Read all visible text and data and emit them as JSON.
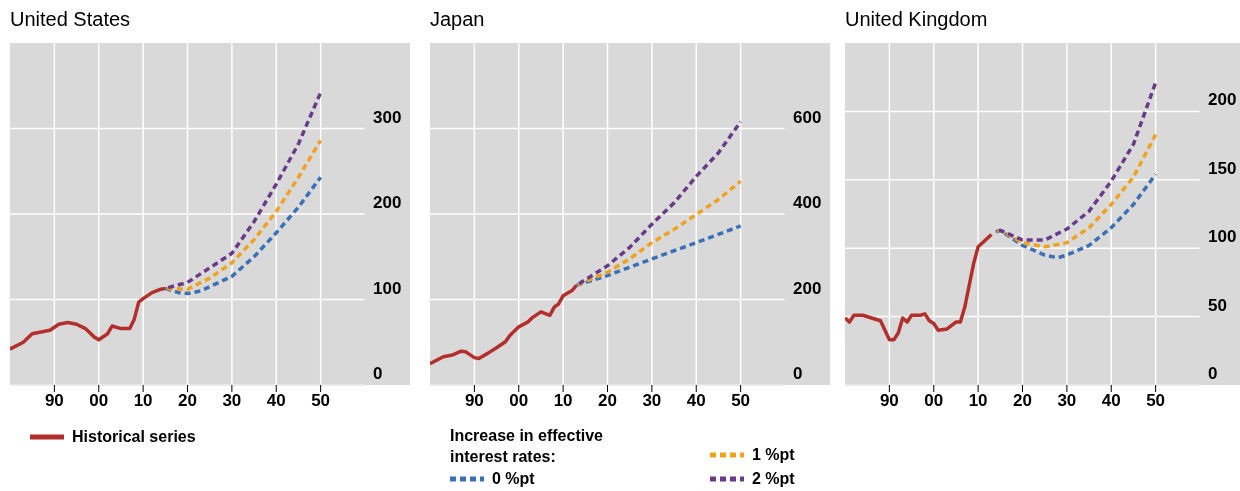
{
  "chart_data": [
    {
      "type": "line",
      "title": "United States",
      "xlim": [
        1980,
        2060
      ],
      "xticks": [
        {
          "value": 1990,
          "label": "90"
        },
        {
          "value": 2000,
          "label": "00"
        },
        {
          "value": 2010,
          "label": "10"
        },
        {
          "value": 2020,
          "label": "20"
        },
        {
          "value": 2030,
          "label": "30"
        },
        {
          "value": 2040,
          "label": "40"
        },
        {
          "value": 2050,
          "label": "50"
        }
      ],
      "ylim": [
        0,
        400
      ],
      "yticks": [
        0,
        100,
        200,
        300
      ],
      "grid": true,
      "legend": "bottom",
      "series": [
        {
          "name": "Historical series",
          "color": "#b22f2c",
          "line_style": "solid",
          "x": [
            1980,
            1983,
            1985,
            1987,
            1989,
            1991,
            1993,
            1995,
            1997,
            1999,
            2000,
            2002,
            2003,
            2005,
            2007,
            2008,
            2009,
            2010,
            2012,
            2014,
            2015
          ],
          "values": [
            42,
            50,
            60,
            62,
            64,
            71,
            73,
            71,
            66,
            56,
            53,
            60,
            69,
            66,
            66,
            77,
            97,
            101,
            108,
            112,
            113
          ]
        },
        {
          "color": "#3a70b5",
          "line_style": "dashed",
          "x": [
            2015,
            2018,
            2020,
            2023,
            2025,
            2030,
            2035,
            2040,
            2045,
            2050
          ],
          "values": [
            113,
            108,
            107,
            110,
            115,
            127,
            150,
            178,
            208,
            243
          ]
        },
        {
          "color": "#f0a21e",
          "line_style": "dashed",
          "x": [
            2015,
            2020,
            2025,
            2030,
            2035,
            2040,
            2045,
            2050
          ],
          "values": [
            113,
            112,
            125,
            143,
            170,
            203,
            243,
            286
          ]
        },
        {
          "color": "#6a3a8a",
          "line_style": "dashed",
          "x": [
            2015,
            2020,
            2025,
            2030,
            2035,
            2040,
            2045,
            2050
          ],
          "values": [
            113,
            120,
            137,
            154,
            191,
            235,
            282,
            342
          ]
        }
      ]
    },
    {
      "type": "line",
      "title": "Japan",
      "xlim": [
        1980,
        2060
      ],
      "xticks": [
        {
          "value": 1990,
          "label": "90"
        },
        {
          "value": 2000,
          "label": "00"
        },
        {
          "value": 2010,
          "label": "10"
        },
        {
          "value": 2020,
          "label": "20"
        },
        {
          "value": 2030,
          "label": "30"
        },
        {
          "value": 2040,
          "label": "40"
        },
        {
          "value": 2050,
          "label": "50"
        }
      ],
      "ylim": [
        0,
        800
      ],
      "yticks": [
        0,
        200,
        400,
        600
      ],
      "grid": true,
      "legend": "bottom",
      "legend_title": "Increase in effective interest rates:",
      "series": [
        {
          "color": "#b22f2c",
          "line_style": "solid",
          "x": [
            1980,
            1983,
            1985,
            1987,
            1988,
            1990,
            1991,
            1993,
            1995,
            1997,
            1998,
            2000,
            2002,
            2003,
            2005,
            2007,
            2008,
            2009,
            2010,
            2012,
            2013
          ],
          "values": [
            50,
            66,
            70,
            79,
            78,
            64,
            62,
            74,
            87,
            101,
            116,
            136,
            147,
            157,
            171,
            163,
            182,
            190,
            209,
            221,
            233
          ]
        },
        {
          "name": "0 %pt",
          "color": "#3a70b5",
          "line_style": "dashed",
          "x": [
            2013,
            2020,
            2030,
            2040,
            2050
          ],
          "values": [
            233,
            256,
            295,
            333,
            372
          ]
        },
        {
          "name": "1 %pt",
          "color": "#f0a21e",
          "line_style": "dashed",
          "x": [
            2013,
            2020,
            2025,
            2030,
            2035,
            2040,
            2045,
            2050
          ],
          "values": [
            233,
            264,
            295,
            333,
            364,
            399,
            434,
            477
          ]
        },
        {
          "name": "2 %pt",
          "color": "#6a3a8a",
          "line_style": "dashed",
          "x": [
            2013,
            2020,
            2025,
            2030,
            2035,
            2040,
            2045,
            2050
          ],
          "values": [
            233,
            279,
            322,
            376,
            426,
            488,
            543,
            616
          ]
        }
      ]
    },
    {
      "type": "line",
      "title": "United Kingdom",
      "xlim": [
        1980,
        2060
      ],
      "xticks": [
        {
          "value": 1990,
          "label": "90"
        },
        {
          "value": 2000,
          "label": "00"
        },
        {
          "value": 2010,
          "label": "10"
        },
        {
          "value": 2020,
          "label": "20"
        },
        {
          "value": 2030,
          "label": "30"
        },
        {
          "value": 2040,
          "label": "40"
        },
        {
          "value": 2050,
          "label": "50"
        }
      ],
      "ylim": [
        0,
        250
      ],
      "yticks": [
        0,
        50,
        100,
        150,
        200
      ],
      "grid": true,
      "series": [
        {
          "color": "#b22f2c",
          "line_style": "solid",
          "x": [
            1980,
            1981,
            1982,
            1984,
            1986,
            1988,
            1989,
            1990,
            1991,
            1992,
            1993,
            1994,
            1995,
            1997,
            1998,
            1999,
            2000,
            2001,
            2003,
            2005,
            2006,
            2007,
            2009,
            2010,
            2011,
            2013
          ],
          "values": [
            49,
            46,
            51,
            51,
            49,
            47,
            40,
            33,
            33,
            38,
            49,
            46,
            51,
            51,
            52,
            47,
            45,
            40,
            41,
            46,
            46,
            57,
            89,
            101,
            104,
            110
          ]
        },
        {
          "color": "#3a70b5",
          "line_style": "dashed",
          "x": [
            2014,
            2015,
            2020,
            2025,
            2028,
            2030,
            2035,
            2040,
            2045,
            2050
          ],
          "values": [
            112,
            113,
            102,
            95,
            93,
            95,
            102,
            115,
            132,
            154
          ]
        },
        {
          "color": "#f0a21e",
          "line_style": "dashed",
          "x": [
            2014,
            2015,
            2020,
            2025,
            2030,
            2035,
            2040,
            2045,
            2050
          ],
          "values": [
            112,
            113,
            104,
            101,
            104,
            115,
            132,
            152,
            183
          ]
        },
        {
          "color": "#6a3a8a",
          "line_style": "dashed",
          "x": [
            2014,
            2015,
            2020,
            2025,
            2030,
            2035,
            2040,
            2045,
            2050
          ],
          "values": [
            112,
            113,
            106,
            106,
            114,
            127,
            149,
            176,
            221
          ]
        }
      ]
    }
  ]
}
